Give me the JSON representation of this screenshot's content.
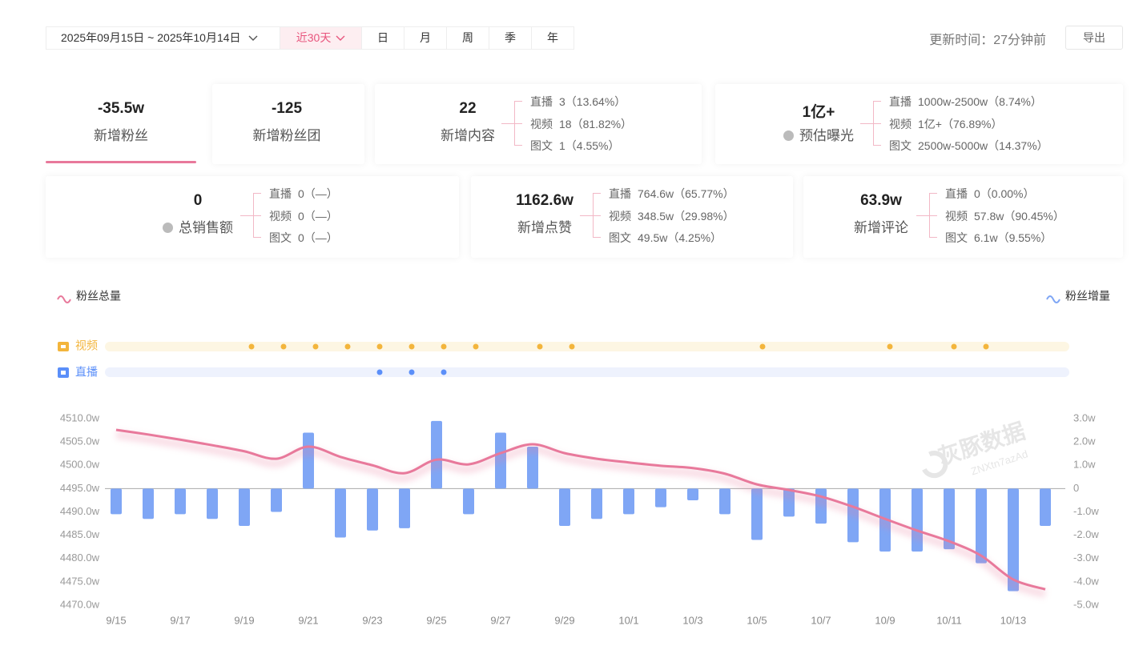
{
  "header": {
    "date_range": "2025年09月15日 ~ 2025年10月14日",
    "tabs": [
      "近30天",
      "日",
      "月",
      "周",
      "季",
      "年"
    ],
    "update_time": "更新时间：27分钟前",
    "export": "导出"
  },
  "metrics": [
    {
      "value": "-35.5w",
      "label": "新增粉丝"
    },
    {
      "value": "-125",
      "label": "新增粉丝团"
    },
    {
      "value": "22",
      "label": "新增内容",
      "breakdown": [
        {
          "label": "直播",
          "value": "3（13.64%）"
        },
        {
          "label": "视频",
          "value": "18（81.82%）"
        },
        {
          "label": "图文",
          "value": "1（4.55%）"
        }
      ]
    },
    {
      "value": "1亿+",
      "label": "预估曝光",
      "breakdown": [
        {
          "label": "直播",
          "value": "1000w-2500w（8.74%）"
        },
        {
          "label": "视频",
          "value": "1亿+（76.89%）"
        },
        {
          "label": "图文",
          "value": "2500w-5000w（14.37%）"
        }
      ]
    },
    {
      "value": "0",
      "label": "总销售额",
      "breakdown": [
        {
          "label": "直播",
          "value": "0（—）"
        },
        {
          "label": "视频",
          "value": "0（—）"
        },
        {
          "label": "图文",
          "value": "0（—）"
        }
      ]
    },
    {
      "value": "1162.6w",
      "label": "新增点赞",
      "breakdown": [
        {
          "label": "直播",
          "value": "764.6w（65.77%）"
        },
        {
          "label": "视频",
          "value": "348.5w（29.98%）"
        },
        {
          "label": "图文",
          "value": "49.5w（4.25%）"
        }
      ]
    },
    {
      "value": "63.9w",
      "label": "新增评论",
      "breakdown": [
        {
          "label": "直播",
          "value": "0（0.00%）"
        },
        {
          "label": "视频",
          "value": "57.8w（90.45%）"
        },
        {
          "label": "图文",
          "value": "6.1w（9.55%）"
        }
      ]
    }
  ],
  "timeline": {
    "rows": [
      "视频",
      "直播"
    ]
  },
  "watermark": {
    "logo": "灰豚数据",
    "code": "ZNXtn7azAd"
  },
  "chart_data": {
    "type": "combo",
    "categories": [
      "9/15",
      null,
      "9/17",
      null,
      "9/19",
      null,
      "9/21",
      null,
      "9/23",
      null,
      "9/25",
      null,
      "9/27",
      null,
      "9/29",
      null,
      "10/1",
      null,
      "10/3",
      null,
      "10/5",
      null,
      "10/7",
      null,
      "10/9",
      null,
      "10/11",
      null,
      "10/13",
      null
    ],
    "series": [
      {
        "name": "粉丝总量",
        "type": "line",
        "color": "#e8799b",
        "values": [
          4507.6,
          4506.6,
          4505.5,
          4504.3,
          4503.0,
          4501.4,
          4504.0,
          4501.8,
          4500.0,
          4498.3,
          4501.2,
          4500.2,
          4502.6,
          4504.5,
          4502.6,
          4501.4,
          4500.6,
          4499.9,
          4499.4,
          4498.2,
          4495.9,
          4494.7,
          4493.3,
          4491.1,
          4488.5,
          4486.0,
          4483.7,
          4480.6,
          4475.5,
          4473.4
        ]
      },
      {
        "name": "粉丝增量",
        "type": "bar",
        "axis": "y2",
        "color": "#7fa6f5",
        "values": [
          -1.1,
          -1.3,
          -1.1,
          -1.3,
          -1.6,
          -1.0,
          2.4,
          -2.1,
          -1.8,
          -1.7,
          2.9,
          -1.1,
          2.4,
          1.8,
          -1.6,
          -1.3,
          -1.1,
          -0.8,
          -0.5,
          -1.1,
          -2.2,
          -1.2,
          -1.5,
          -2.3,
          -2.7,
          -2.7,
          -2.6,
          -3.2,
          -4.4,
          -1.6
        ]
      }
    ],
    "ylim": [
      4470,
      4510
    ],
    "yticks": [
      {
        "value": 4470,
        "label": "4470.0w"
      },
      {
        "value": 4475,
        "label": "4475.0w"
      },
      {
        "value": 4480,
        "label": "4480.0w"
      },
      {
        "value": 4485,
        "label": "4485.0w"
      },
      {
        "value": 4490,
        "label": "4490.0w"
      },
      {
        "value": 4495,
        "label": "4495.0w"
      },
      {
        "value": 4500,
        "label": "4500.0w"
      },
      {
        "value": 4505,
        "label": "4505.0w"
      },
      {
        "value": 4510,
        "label": "4510.0w"
      }
    ],
    "y2lim": [
      -5,
      3
    ],
    "y2ticks": [
      {
        "value": -5,
        "label": "-5.0w"
      },
      {
        "value": -4,
        "label": "-4.0w"
      },
      {
        "value": -3,
        "label": "-3.0w"
      },
      {
        "value": -2,
        "label": "-2.0w"
      },
      {
        "value": -1,
        "label": "-1.0w"
      },
      0,
      {
        "value": 1,
        "label": "1.0w"
      },
      {
        "value": 2,
        "label": "2.0w"
      },
      {
        "value": 3,
        "label": "3.0w"
      }
    ]
  }
}
